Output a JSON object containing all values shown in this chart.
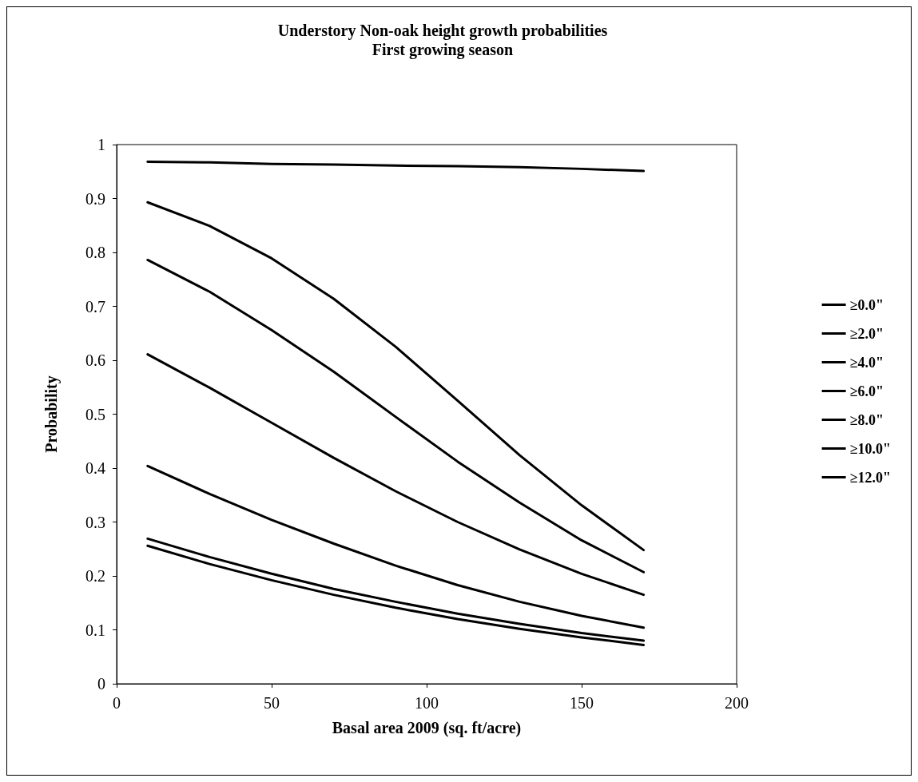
{
  "chart_data": {
    "type": "line",
    "title": "Understory Non-oak height growth probabilities\nFirst growing season",
    "xlabel": "Basal area 2009 (sq. ft/acre)",
    "ylabel": "Probability",
    "x": [
      10,
      30,
      50,
      70,
      90,
      110,
      130,
      150,
      170
    ],
    "series": [
      {
        "name": "≥0.0\"",
        "color": "#000000",
        "values": [
          0.968,
          0.967,
          0.964,
          0.963,
          0.961,
          0.96,
          0.958,
          0.955,
          0.951
        ]
      },
      {
        "name": "≥2.0\"",
        "color": "#000000",
        "values": [
          0.893,
          0.849,
          0.789,
          0.714,
          0.625,
          0.525,
          0.424,
          0.331,
          0.248
        ]
      },
      {
        "name": "≥4.0\"",
        "color": "#000000",
        "values": [
          0.786,
          0.727,
          0.656,
          0.579,
          0.495,
          0.412,
          0.336,
          0.266,
          0.207
        ]
      },
      {
        "name": "≥6.0\"",
        "color": "#000000",
        "values": [
          0.611,
          0.549,
          0.484,
          0.419,
          0.357,
          0.3,
          0.249,
          0.204,
          0.165
        ]
      },
      {
        "name": "≥8.0\"",
        "color": "#000000",
        "values": [
          0.404,
          0.352,
          0.304,
          0.26,
          0.219,
          0.183,
          0.152,
          0.126,
          0.104
        ]
      },
      {
        "name": "≥10.0\"",
        "color": "#000000",
        "values": [
          0.269,
          0.235,
          0.204,
          0.176,
          0.152,
          0.13,
          0.111,
          0.094,
          0.08
        ]
      },
      {
        "name": "≥12.0\"",
        "color": "#000000",
        "values": [
          0.256,
          0.222,
          0.192,
          0.165,
          0.141,
          0.12,
          0.102,
          0.086,
          0.072
        ]
      }
    ],
    "xlim": [
      0,
      200
    ],
    "xticks": [
      0,
      50,
      100,
      150,
      200
    ],
    "ylim": [
      0,
      1
    ],
    "yticks": [
      0,
      0.1,
      0.2,
      0.3,
      0.4,
      0.5,
      0.6,
      0.7,
      0.8,
      0.9,
      1
    ],
    "grid": false,
    "legend": "right",
    "marker": "none",
    "line_style": "solid"
  }
}
